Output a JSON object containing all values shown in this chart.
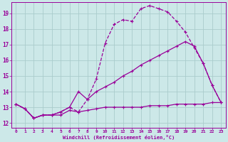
{
  "background_color": "#cce8e8",
  "grid_color": "#aacccc",
  "line_color": "#990099",
  "xlabel": "Windchill (Refroidissement éolien,°C)",
  "xlim": [
    -0.5,
    23.5
  ],
  "ylim": [
    11.7,
    19.7
  ],
  "yticks": [
    12,
    13,
    14,
    15,
    16,
    17,
    18,
    19
  ],
  "xticks": [
    0,
    1,
    2,
    3,
    4,
    5,
    6,
    7,
    8,
    9,
    10,
    11,
    12,
    13,
    14,
    15,
    16,
    17,
    18,
    19,
    20,
    21,
    22,
    23
  ],
  "series": [
    {
      "x": [
        0,
        1,
        2,
        3,
        4,
        5,
        6,
        7,
        8,
        9,
        10,
        11,
        12,
        13,
        14,
        15,
        16,
        17,
        18,
        19,
        20,
        21,
        22,
        23
      ],
      "y": [
        13.2,
        12.9,
        12.3,
        12.5,
        12.5,
        12.5,
        12.8,
        12.7,
        12.8,
        12.9,
        13.0,
        13.0,
        13.0,
        13.0,
        13.0,
        13.1,
        13.1,
        13.1,
        13.2,
        13.2,
        13.2,
        13.2,
        13.3,
        13.3
      ],
      "linestyle": "-",
      "linewidth": 0.9,
      "marker": "+"
    },
    {
      "x": [
        0,
        1,
        2,
        3,
        4,
        5,
        6,
        7,
        8,
        9,
        10,
        11,
        12,
        13,
        14,
        15,
        16,
        17,
        18,
        19,
        20,
        21,
        22,
        23
      ],
      "y": [
        13.2,
        12.9,
        12.3,
        12.5,
        12.5,
        12.7,
        13.0,
        12.7,
        13.5,
        14.8,
        17.1,
        18.3,
        18.6,
        18.5,
        19.3,
        19.5,
        19.3,
        19.1,
        18.5,
        17.8,
        16.8,
        15.8,
        14.4,
        13.3
      ],
      "linestyle": "--",
      "linewidth": 0.9,
      "marker": "+"
    },
    {
      "x": [
        0,
        1,
        2,
        3,
        4,
        5,
        6,
        7,
        8,
        9,
        10,
        11,
        12,
        13,
        14,
        15,
        16,
        17,
        18,
        19,
        20,
        21,
        22,
        23
      ],
      "y": [
        13.2,
        12.9,
        12.3,
        12.5,
        12.5,
        12.7,
        13.0,
        14.0,
        13.5,
        14.0,
        14.3,
        14.6,
        15.0,
        15.3,
        15.7,
        16.0,
        16.3,
        16.6,
        16.9,
        17.2,
        16.9,
        15.8,
        14.4,
        13.3
      ],
      "linestyle": "-",
      "linewidth": 0.9,
      "marker": "+"
    }
  ]
}
